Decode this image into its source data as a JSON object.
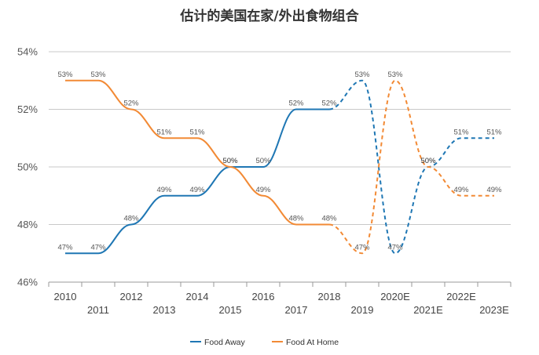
{
  "chart_data": {
    "type": "line",
    "title": "估计的美国在家/外出食物组合",
    "xlabel": "",
    "ylabel": "",
    "categories": [
      "2010",
      "2011",
      "2012",
      "2013",
      "2014",
      "2015",
      "2016",
      "2017",
      "2018",
      "2019",
      "2020E",
      "2021E",
      "2022E",
      "2023E"
    ],
    "ylim": [
      46,
      54
    ],
    "yticks": [
      46,
      48,
      50,
      52,
      54
    ],
    "ytick_labels": [
      "46%",
      "48%",
      "50%",
      "52%",
      "54%"
    ],
    "grid": true,
    "legend_position": "bottom-center",
    "estimate_start_index": 9,
    "series": [
      {
        "name": "Food Away",
        "color": "#1f77b4",
        "values": [
          47,
          47,
          48,
          49,
          49,
          50,
          50,
          52,
          52,
          53,
          47,
          50,
          51,
          51
        ],
        "labels": [
          "47%",
          "47%",
          "48%",
          "49%",
          "49%",
          "50%",
          "50%",
          "52%",
          "52%",
          "53%",
          "47%",
          "50%",
          "51%",
          "51%"
        ]
      },
      {
        "name": "Food At Home",
        "color": "#f28a35",
        "values": [
          53,
          53,
          52,
          51,
          51,
          50,
          49,
          48,
          48,
          47,
          53,
          50,
          49,
          49
        ],
        "labels": [
          "53%",
          "53%",
          "52%",
          "51%",
          "51%",
          "50%",
          "49%",
          "48%",
          "48%",
          "47%",
          "53%",
          "50%",
          "49%",
          "49%"
        ]
      }
    ]
  }
}
